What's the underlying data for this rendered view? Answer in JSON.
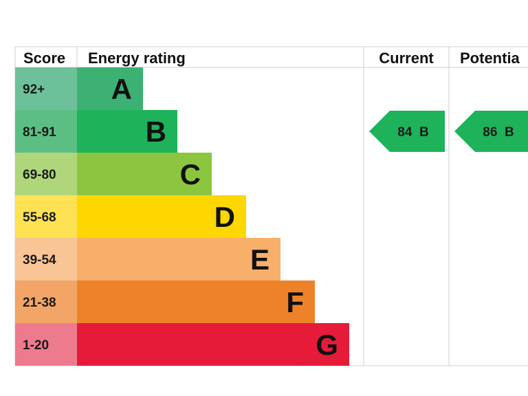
{
  "chart_data": {
    "type": "bar",
    "headers": {
      "score": "Score",
      "rating": "Energy rating",
      "current": "Current",
      "potential": "Potentia"
    },
    "bands": [
      {
        "score": "92+",
        "letter": "A",
        "color": "#3DB173",
        "score_color": "#6DC19A"
      },
      {
        "score": "81-91",
        "letter": "B",
        "color": "#1EB35A",
        "score_color": "#5DBE84"
      },
      {
        "score": "69-80",
        "letter": "C",
        "color": "#8CC63F",
        "score_color": "#AFD67B"
      },
      {
        "score": "55-68",
        "letter": "D",
        "color": "#FED700",
        "score_color": "#FEE253"
      },
      {
        "score": "39-54",
        "letter": "E",
        "color": "#F8AF69",
        "score_color": "#FAC594"
      },
      {
        "score": "21-38",
        "letter": "F",
        "color": "#EE8229",
        "score_color": "#F2A566"
      },
      {
        "score": "1-20",
        "letter": "G",
        "color": "#E61B3A",
        "score_color": "#EE7A8E"
      }
    ],
    "current": {
      "value": 84,
      "band": "B",
      "label": "84  B",
      "color": "#1EB35A"
    },
    "potential": {
      "value": 86,
      "band": "B",
      "label": "86  B",
      "color": "#1EB35A"
    }
  }
}
